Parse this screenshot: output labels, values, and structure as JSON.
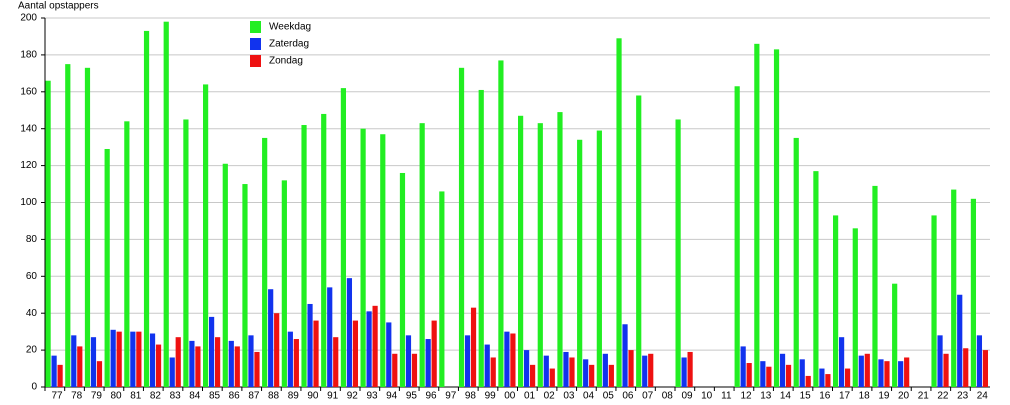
{
  "chart_data": {
    "type": "bar",
    "y_label": "Aantal opstappers",
    "categories": [
      "77",
      "78",
      "79",
      "80",
      "81",
      "82",
      "83",
      "84",
      "85",
      "86",
      "87",
      "88",
      "89",
      "90",
      "91",
      "92",
      "93",
      "94",
      "95",
      "96",
      "97",
      "98",
      "99",
      "00",
      "01",
      "02",
      "03",
      "04",
      "05",
      "06",
      "07",
      "08",
      "09",
      "10",
      "11",
      "12",
      "13",
      "14",
      "15",
      "16",
      "17",
      "18",
      "19",
      "20",
      "21",
      "22",
      "23",
      "24"
    ],
    "series": [
      {
        "name": "Weekdag",
        "color": "#22ee22",
        "values": [
          166,
          175,
          173,
          129,
          144,
          193,
          198,
          145,
          164,
          121,
          110,
          135,
          112,
          142,
          148,
          162,
          140,
          137,
          116,
          143,
          106,
          173,
          161,
          177,
          147,
          143,
          149,
          134,
          139,
          189,
          158,
          null,
          145,
          null,
          null,
          163,
          186,
          183,
          135,
          117,
          93,
          86,
          109,
          56,
          null,
          93,
          107,
          102
        ]
      },
      {
        "name": "Zaterdag",
        "color": "#1133ee",
        "values": [
          17,
          28,
          27,
          31,
          30,
          29,
          16,
          25,
          38,
          25,
          28,
          53,
          30,
          45,
          54,
          59,
          41,
          35,
          28,
          26,
          null,
          28,
          23,
          30,
          20,
          17,
          19,
          15,
          18,
          34,
          17,
          null,
          16,
          null,
          null,
          22,
          14,
          18,
          15,
          10,
          27,
          17,
          15,
          14,
          null,
          28,
          50,
          28
        ]
      },
      {
        "name": "Zondag",
        "color": "#ee1111",
        "values": [
          12,
          22,
          14,
          30,
          30,
          23,
          27,
          22,
          27,
          22,
          19,
          40,
          26,
          36,
          27,
          36,
          44,
          18,
          18,
          36,
          null,
          43,
          16,
          29,
          12,
          10,
          16,
          12,
          12,
          20,
          18,
          null,
          19,
          null,
          null,
          13,
          11,
          12,
          6,
          7,
          10,
          18,
          14,
          16,
          null,
          18,
          21,
          20
        ]
      }
    ],
    "ylim": [
      0,
      200
    ],
    "yticks": [
      0,
      20,
      40,
      60,
      80,
      100,
      120,
      140,
      160,
      180,
      200
    ],
    "grid": true,
    "legend": "top-left"
  }
}
